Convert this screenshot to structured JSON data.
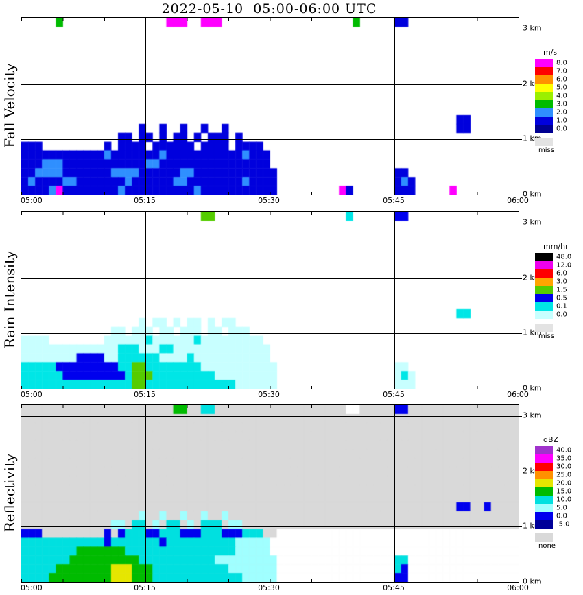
{
  "title": "2022-05-10  05:00-06:00 UTC",
  "x_ticks": [
    "05:00",
    "05:15",
    "05:30",
    "05:45",
    "06:00"
  ],
  "y_ticks": [
    "3 km",
    "2 km",
    "1 km",
    "0 km"
  ],
  "chart_data": [
    {
      "type": "heatmap",
      "name": "Fall Velocity",
      "units": "m/s",
      "x_range": [
        "05:00",
        "06:00"
      ],
      "y_range_km": [
        0,
        3.2
      ],
      "grid_cols": 72,
      "grid_rows": 20,
      "pad": ".",
      "palette": {
        "b": "#0000dd",
        "c": "#2f8fff",
        "m": "#ff00ff",
        "g": "#00bb00"
      },
      "levels": [
        {
          "label": "8.0",
          "color": "#ff00ff"
        },
        {
          "label": "7.0",
          "color": "#ff0000"
        },
        {
          "label": "6.0",
          "color": "#ff9100"
        },
        {
          "label": "5.0",
          "color": "#ffff00"
        },
        {
          "label": "4.0",
          "color": "#9bef00"
        },
        {
          "label": "3.0",
          "color": "#00bb00"
        },
        {
          "label": "2.0",
          "color": "#2f8fff"
        },
        {
          "label": "1.0",
          "color": "#0000dd"
        },
        {
          "label": "0.0",
          "color": "#000091"
        }
      ],
      "missing": {
        "label": "miss",
        "color": "#e3e3e3"
      },
      "grid": [
        ".....g...............mmm..mmm...................g.....bb",
        "",
        "",
        "",
        "",
        "",
        "",
        "",
        "",
        "",
        "",
        "...............................................................bb",
        ".................b..b..b..b..b.................................bb",
        "..............bb.bb.b.bb.b.bbb.b",
        "bbb.........b.bbbb.bbbbbb.bbbb.bbbb",
        "bbbbbbbbbbbbcbbbbbbbcbbbbbbbbbbbcbbb",
        "bbbcccbbbbbbbbbbbbccbbbbbbbbbbbbbbbb",
        "bbccccbbbbbbbccccbbbbbbccbbbbbbbbbbbb.................bb",
        "bcbbbbccbbbbbbbcbbbbbbccbbbbbbbbcbbbb.................bcb",
        "bbbbcmbbbbbbbbcbbbbbbbbbbcbbbbbbbbbbb.........mb......bbb.....m"
      ]
    },
    {
      "type": "heatmap",
      "name": "Rain Intensity",
      "units": "mm/hr",
      "x_range": [
        "05:00",
        "06:00"
      ],
      "y_range_km": [
        0,
        3.2
      ],
      "grid_cols": 72,
      "grid_rows": 20,
      "pad": ".",
      "palette": {
        "p": "#c8ffff",
        "c": "#00e6e6",
        "b": "#0000ee",
        "g": "#55cc00"
      },
      "levels": [
        {
          "label": "48.0",
          "color": "#000000"
        },
        {
          "label": "12.0",
          "color": "#ee00ee"
        },
        {
          "label": "6.0",
          "color": "#ff0000"
        },
        {
          "label": "3.0",
          "color": "#ffa500"
        },
        {
          "label": "1.5",
          "color": "#55cc00"
        },
        {
          "label": "0.5",
          "color": "#0000ee"
        },
        {
          "label": "0.1",
          "color": "#00e6e6"
        },
        {
          "label": "0.0",
          "color": "#c8ffff"
        }
      ],
      "missing": {
        "label": "miss",
        "color": "#e3e3e3"
      },
      "grid": [
        "..........................gg...................c......bb",
        "",
        "",
        "",
        "",
        "",
        "",
        "",
        "",
        "",
        "",
        "...............................................................cc",
        ".................p.pp.p.pp.p.pp",
        ".............pp.ppp.pp.ppp.pp.ppp",
        "pppp........ppppppcppppppcppppppppp",
        "ppppppppppppppcccpppccpppppppppppppp",
        "ppppppppbbbbppccccccppppcppppppppppp",
        "cccccbbbbbbbbbccggccccccccppppppppppp.................pp",
        "ccccccbbbbbbbbbcgggcccccccccppppppppp.................pcp",
        "ccccccccccccccccggcccccccccccccpppppp.................ppp"
      ]
    },
    {
      "type": "heatmap",
      "name": "Reflectivity",
      "units": "dBZ",
      "x_range": [
        "05:00",
        "06:00"
      ],
      "y_range_km": [
        0,
        3.2
      ],
      "grid_cols": 72,
      "grid_rows": 20,
      "pad": "-",
      "palette": {
        "-": "#d9d9d9",
        "w": "#ffffff",
        "n": "#000099",
        "b": "#0000ee",
        "l": "#a0ffff",
        "c": "#00e0e0",
        "g": "#00bb00",
        "y": "#e6e600"
      },
      "levels": [
        {
          "label": "40.0",
          "color": "#a033cc"
        },
        {
          "label": "35.0",
          "color": "#ff00ff"
        },
        {
          "label": "30.0",
          "color": "#ff0000"
        },
        {
          "label": "25.0",
          "color": "#ff9100"
        },
        {
          "label": "20.0",
          "color": "#e6e600"
        },
        {
          "label": "15.0",
          "color": "#00bb00"
        },
        {
          "label": "10.0",
          "color": "#00e0e0"
        },
        {
          "label": "5.0",
          "color": "#a0ffff"
        },
        {
          "label": "0.0",
          "color": "#0000ee"
        },
        {
          "label": "-5.0",
          "color": "#000099"
        }
      ],
      "missing": {
        "label": "none",
        "color": "#d9d9d9"
      },
      "grid": [
        "----------------------gg--cc-------------------ww-----bb",
        "",
        "",
        "",
        "",
        "",
        "",
        "",
        "",
        "",
        "",
        "---------------------------------------------------------------bb--b",
        "-----------------l--l--l--l--l",
        "-------------ll-cc-l-cc-l-ccc-ll",
        "bbb---------b-bcccbbcccbbbcccbbbccc--wwwwwwwwwwwwwwwwwwwwwwwwwwwwwwwwwww",
        "ccccccccccccbcccccccbcccccccccclllllwwwwwwwwwwwwwwwwwwwwwwwwwwwwwwwwwwww",
        "ccccccccgggggggcccccccccccccccclllllwwwwwwwwwwwwwwwwwwwwwwwwwwwwwwwwwwww",
        "cccccccggggggggggccccccccccclllllllllwwwwwwwwwwwwwwwwwccwwwwwwwwwwwwwwww",
        "cccccggggggggyyygggccccccccccclllllllwwwwwwwwwwwwwwwwwcbwwwwwwwwwwwwwwww",
        "ccccgggggggggyyygggccccccccccccclllllwwwwwwwwwwwwwwwwwbbwwwwwwwwwwwwwwww"
      ]
    }
  ]
}
